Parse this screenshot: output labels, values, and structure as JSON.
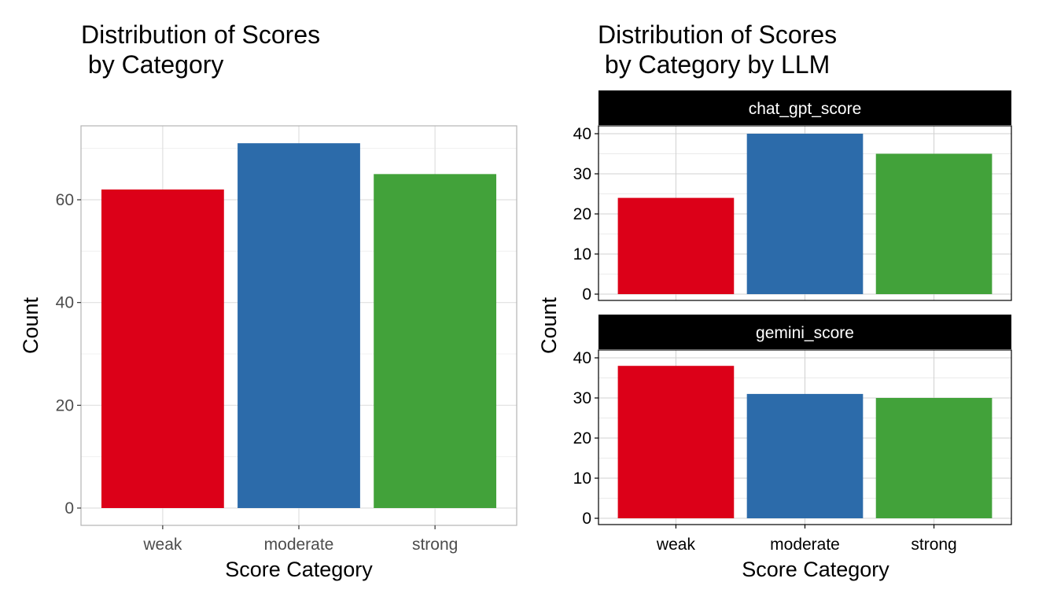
{
  "colors": {
    "weak": "#DC0018",
    "moderate": "#2C6BAA",
    "strong": "#42A23A"
  },
  "left": {
    "title_line1": "Distribution of Scores",
    "title_line2": " by Category",
    "xlabel": "Score Category",
    "ylabel": "Count"
  },
  "right": {
    "title_line1": "Distribution of Scores",
    "title_line2": " by Category by LLM",
    "xlabel": "Score Category",
    "ylabel": "Count"
  },
  "chart_data": [
    {
      "type": "bar",
      "title": "Distribution of Scores\n by Category",
      "xlabel": "Score Category",
      "ylabel": "Count",
      "categories": [
        "weak",
        "moderate",
        "strong"
      ],
      "values": [
        62,
        71,
        65
      ],
      "ylim": [
        0,
        74.5
      ],
      "yticks": [
        0,
        20,
        40,
        60
      ],
      "grid": true,
      "legend": "none"
    },
    {
      "type": "bar",
      "title": "Distribution of Scores\n by Category by LLM",
      "xlabel": "Score Category",
      "ylabel": "Count",
      "categories": [
        "weak",
        "moderate",
        "strong"
      ],
      "facets": [
        {
          "name": "chat_gpt_score",
          "values": [
            24,
            40,
            35
          ]
        },
        {
          "name": "gemini_score",
          "values": [
            38,
            31,
            30
          ]
        }
      ],
      "ylim": [
        0,
        42
      ],
      "yticks": [
        0,
        10,
        20,
        30,
        40
      ],
      "grid": true,
      "legend": "none"
    }
  ]
}
